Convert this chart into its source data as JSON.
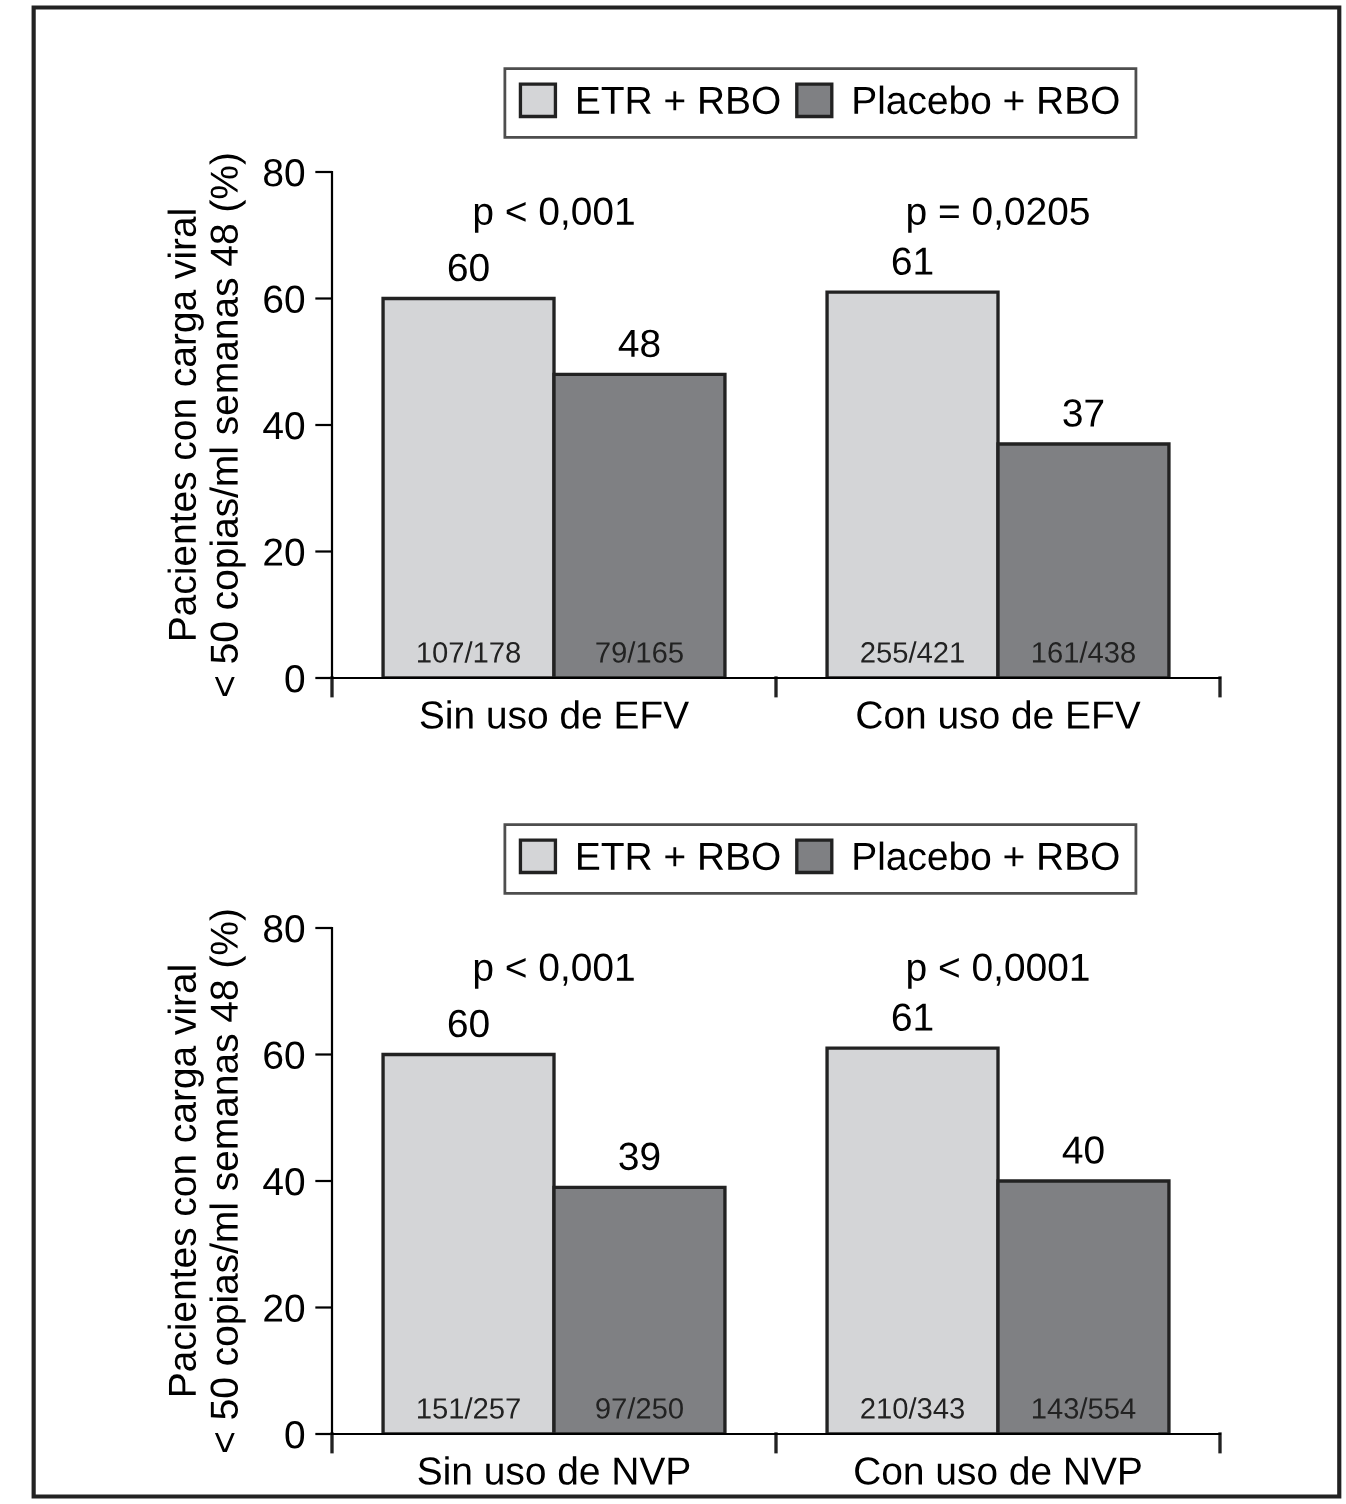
{
  "chart_data": [
    {
      "type": "bar",
      "categories": [
        "Sin uso de EFV",
        "Con uso de EFV"
      ],
      "ylabel": "Pacientes con carga viral\n< 50 copias/ml semanas 48 (%)",
      "ylim": [
        0,
        80
      ],
      "yticks": [
        0,
        20,
        40,
        60,
        80
      ],
      "legend": "top",
      "data_labels": true,
      "grid": false,
      "series": [
        {
          "name": "ETR + RBO",
          "color": "#d4d5d7",
          "values": [
            60,
            61
          ]
        },
        {
          "name": "Placebo + RBO",
          "color": "#7f8083",
          "values": [
            48,
            37
          ]
        }
      ],
      "annotations": [
        "p < 0,001",
        "p = 0,0205",
        "107/178",
        "255/421",
        "79/165",
        "161/438"
      ]
    },
    {
      "type": "bar",
      "categories": [
        "Sin uso de NVP",
        "Con uso de NVP"
      ],
      "ylabel": "Pacientes con carga viral\n< 50 copias/ml semanas 48 (%)",
      "ylim": [
        0,
        80
      ],
      "yticks": [
        0,
        20,
        40,
        60,
        80
      ],
      "legend": "top",
      "data_labels": true,
      "grid": false,
      "series": [
        {
          "name": "ETR + RBO",
          "color": "#d4d5d7",
          "values": [
            60,
            61
          ]
        },
        {
          "name": "Placebo + RBO",
          "color": "#7f8083",
          "values": [
            39,
            40
          ]
        }
      ],
      "annotations": [
        "p < 0,001",
        "p < 0,0001",
        "151/257",
        "210/343",
        "97/250",
        "143/554"
      ]
    }
  ]
}
